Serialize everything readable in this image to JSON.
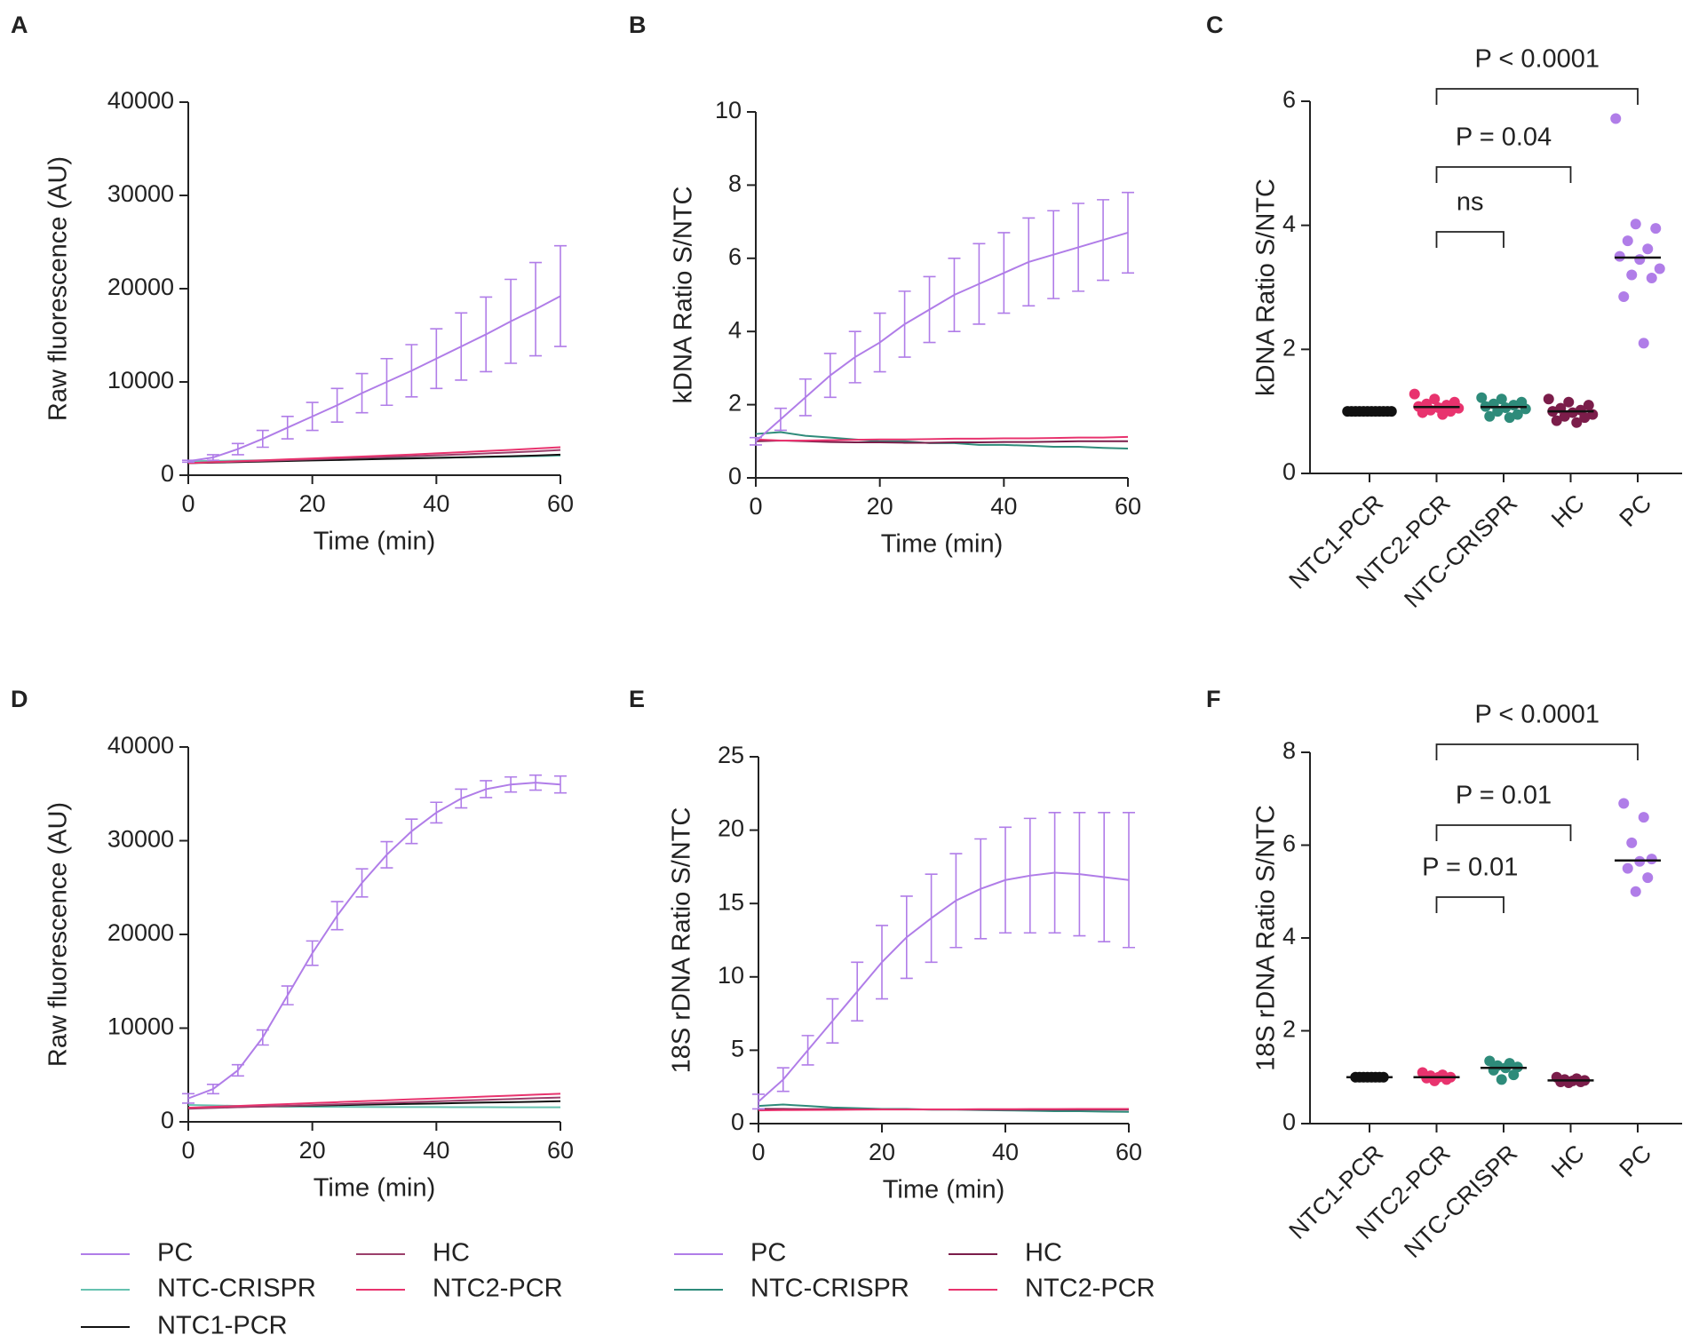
{
  "chart_data": [
    {
      "type": "line",
      "panel": "A",
      "xlabel": "Time (min)",
      "ylabel": "Raw fluorescence (AU)",
      "x": [
        0,
        4,
        8,
        12,
        16,
        20,
        24,
        28,
        32,
        36,
        40,
        44,
        48,
        52,
        56,
        60
      ],
      "xlim": [
        0,
        60
      ],
      "xticks": [
        0,
        20,
        40,
        60
      ],
      "ylim": [
        0,
        40000
      ],
      "yticks": [
        0,
        10000,
        20000,
        30000,
        40000
      ],
      "legend": false,
      "series": [
        {
          "name": "PC",
          "color": "#b07de8",
          "values": [
            1500,
            1900,
            2800,
            3900,
            5100,
            6300,
            7500,
            8800,
            10000,
            11200,
            12500,
            13800,
            15100,
            16500,
            17800,
            19200
          ],
          "errors": [
            100,
            300,
            600,
            900,
            1200,
            1500,
            1800,
            2100,
            2500,
            2800,
            3200,
            3600,
            4000,
            4500,
            5000,
            5400
          ]
        },
        {
          "name": "NTC-CRISPR",
          "color": "#66c2b0",
          "values": [
            1500,
            1530,
            1570,
            1600,
            1640,
            1680,
            1710,
            1750,
            1790,
            1830,
            1870,
            1910,
            1950,
            1990,
            2040,
            2100
          ]
        },
        {
          "name": "NTC1-PCR",
          "color": "#111111",
          "values": [
            1300,
            1350,
            1410,
            1460,
            1520,
            1580,
            1630,
            1690,
            1750,
            1800,
            1860,
            1920,
            1980,
            2040,
            2110,
            2200
          ]
        },
        {
          "name": "HC",
          "color": "#9b3f6b",
          "values": [
            1300,
            1380,
            1460,
            1540,
            1620,
            1700,
            1790,
            1870,
            1950,
            2040,
            2130,
            2230,
            2330,
            2440,
            2560,
            2700
          ]
        },
        {
          "name": "NTC2-PCR",
          "color": "#e8336e",
          "values": [
            1300,
            1400,
            1500,
            1600,
            1700,
            1800,
            1900,
            2000,
            2110,
            2220,
            2340,
            2460,
            2590,
            2720,
            2860,
            3000
          ]
        }
      ]
    },
    {
      "type": "line",
      "panel": "B",
      "xlabel": "Time (min)",
      "ylabel": "kDNA Ratio S/NTC",
      "x": [
        0,
        4,
        8,
        12,
        16,
        20,
        24,
        28,
        32,
        36,
        40,
        44,
        48,
        52,
        56,
        60
      ],
      "xlim": [
        0,
        60
      ],
      "xticks": [
        0,
        20,
        40,
        60
      ],
      "ylim": [
        0,
        10
      ],
      "yticks": [
        0,
        2,
        4,
        6,
        8,
        10
      ],
      "legend": false,
      "series": [
        {
          "name": "PC",
          "color": "#b07de8",
          "values": [
            1.0,
            1.6,
            2.2,
            2.8,
            3.3,
            3.7,
            4.2,
            4.6,
            5.0,
            5.3,
            5.6,
            5.9,
            6.1,
            6.3,
            6.5,
            6.7
          ],
          "errors": [
            0.1,
            0.3,
            0.5,
            0.6,
            0.7,
            0.8,
            0.9,
            0.9,
            1.0,
            1.1,
            1.1,
            1.2,
            1.2,
            1.2,
            1.1,
            1.1
          ]
        },
        {
          "name": "NTC-CRISPR",
          "color": "#2e8b7a",
          "values": [
            1.2,
            1.25,
            1.15,
            1.1,
            1.05,
            1.0,
            1.0,
            0.95,
            0.95,
            0.9,
            0.9,
            0.88,
            0.85,
            0.85,
            0.82,
            0.8
          ]
        },
        {
          "name": "HC",
          "color": "#7b1d4a",
          "values": [
            1.0,
            1.02,
            1.0,
            0.98,
            0.97,
            0.97,
            0.96,
            0.96,
            0.97,
            0.97,
            0.98,
            0.98,
            0.99,
            1.0,
            1.0,
            1.0
          ]
        },
        {
          "name": "NTC2-PCR",
          "color": "#e8336e",
          "values": [
            1.05,
            1.02,
            1.02,
            1.03,
            1.04,
            1.05,
            1.05,
            1.06,
            1.07,
            1.07,
            1.08,
            1.08,
            1.09,
            1.1,
            1.1,
            1.12
          ]
        }
      ]
    },
    {
      "type": "dot",
      "panel": "C",
      "ylabel": "kDNA Ratio S/NTC",
      "categories": [
        "NTC1-PCR",
        "NTC2-PCR",
        "NTC-CRISPR",
        "HC",
        "PC"
      ],
      "colors": [
        "#111111",
        "#e8336e",
        "#2e8b7a",
        "#7b1d4a",
        "#b07de8"
      ],
      "ylim": [
        0,
        6
      ],
      "yticks": [
        0,
        2,
        4,
        6
      ],
      "values": [
        [
          1,
          1,
          1,
          1,
          1,
          1,
          1,
          1,
          1,
          1,
          1,
          1
        ],
        [
          1.28,
          1.2,
          1.15,
          1.12,
          1.1,
          1.08,
          1.06,
          1.05,
          1.02,
          1.0,
          0.98,
          0.95
        ],
        [
          1.22,
          1.2,
          1.15,
          1.12,
          1.1,
          1.08,
          1.06,
          1.04,
          1.0,
          0.95,
          0.92,
          0.9
        ],
        [
          1.2,
          1.15,
          1.1,
          1.05,
          1.02,
          1.0,
          0.98,
          0.95,
          0.92,
          0.9,
          0.85,
          0.82
        ],
        [
          5.72,
          4.02,
          3.95,
          3.75,
          3.62,
          3.5,
          3.45,
          3.3,
          3.2,
          3.15,
          2.85,
          2.1
        ]
      ],
      "medians": [
        1.0,
        1.07,
        1.07,
        1.0,
        3.48
      ],
      "annotations": [
        {
          "from": "NTC2-PCR",
          "to": "NTC-CRISPR",
          "label": "ns"
        },
        {
          "from": "NTC2-PCR",
          "to": "HC",
          "label": "P = 0.04"
        },
        {
          "from": "NTC2-PCR",
          "to": "PC",
          "label": "P < 0.0001"
        }
      ]
    },
    {
      "type": "line",
      "panel": "D",
      "xlabel": "Time (min)",
      "ylabel": "Raw fluorescence (AU)",
      "x": [
        0,
        4,
        8,
        12,
        16,
        20,
        24,
        28,
        32,
        36,
        40,
        44,
        48,
        52,
        56,
        60
      ],
      "xlim": [
        0,
        60
      ],
      "xticks": [
        0,
        20,
        40,
        60
      ],
      "ylim": [
        0,
        40000
      ],
      "yticks": [
        0,
        10000,
        20000,
        30000,
        40000
      ],
      "legend": true,
      "series": [
        {
          "name": "PC",
          "color": "#b07de8",
          "values": [
            2500,
            3500,
            5500,
            9000,
            13500,
            18000,
            22000,
            25500,
            28500,
            31000,
            33000,
            34500,
            35500,
            36000,
            36200,
            36000
          ],
          "errors": [
            500,
            500,
            600,
            800,
            1000,
            1300,
            1500,
            1500,
            1400,
            1300,
            1100,
            1000,
            900,
            800,
            800,
            900
          ]
        },
        {
          "name": "NTC-CRISPR",
          "color": "#66c2b0",
          "values": [
            1800,
            1750,
            1700,
            1650,
            1620,
            1600,
            1600,
            1590,
            1580,
            1580,
            1570,
            1560,
            1560,
            1550,
            1550,
            1550
          ]
        },
        {
          "name": "NTC1-PCR",
          "color": "#111111",
          "values": [
            1500,
            1540,
            1590,
            1640,
            1680,
            1730,
            1780,
            1820,
            1870,
            1920,
            1960,
            2010,
            2060,
            2100,
            2150,
            2200
          ]
        },
        {
          "name": "HC",
          "color": "#9b3f6b",
          "values": [
            1400,
            1480,
            1560,
            1630,
            1710,
            1790,
            1870,
            1950,
            2030,
            2110,
            2190,
            2270,
            2350,
            2430,
            2520,
            2600
          ]
        },
        {
          "name": "NTC2-PCR",
          "color": "#e8336e",
          "values": [
            1500,
            1600,
            1700,
            1800,
            1900,
            2000,
            2100,
            2200,
            2300,
            2400,
            2500,
            2600,
            2700,
            2800,
            2900,
            3000
          ]
        }
      ]
    },
    {
      "type": "line",
      "panel": "E",
      "xlabel": "Time (min)",
      "ylabel": "18S rDNA Ratio S/NTC",
      "x": [
        0,
        4,
        8,
        12,
        16,
        20,
        24,
        28,
        32,
        36,
        40,
        44,
        48,
        52,
        56,
        60
      ],
      "xlim": [
        0,
        60
      ],
      "xticks": [
        0,
        20,
        40,
        60
      ],
      "ylim": [
        0,
        25
      ],
      "yticks": [
        0,
        5,
        10,
        15,
        20,
        25
      ],
      "legend": true,
      "series": [
        {
          "name": "PC",
          "color": "#b07de8",
          "values": [
            1.5,
            3.0,
            5.0,
            7.0,
            9.0,
            11.0,
            12.7,
            14.0,
            15.2,
            16.0,
            16.6,
            16.9,
            17.1,
            17.0,
            16.8,
            16.6
          ],
          "errors": [
            0.5,
            0.8,
            1.0,
            1.5,
            2.0,
            2.5,
            2.8,
            3.0,
            3.2,
            3.4,
            3.6,
            3.9,
            4.1,
            4.2,
            4.4,
            4.6
          ]
        },
        {
          "name": "NTC-CRISPR",
          "color": "#2e8b7a",
          "values": [
            1.2,
            1.3,
            1.2,
            1.1,
            1.05,
            1.0,
            1.0,
            0.95,
            0.95,
            0.92,
            0.9,
            0.88,
            0.85,
            0.85,
            0.82,
            0.8
          ]
        },
        {
          "name": "HC",
          "color": "#7b1d4a",
          "values": [
            1.0,
            1.0,
            0.98,
            0.98,
            0.97,
            0.97,
            0.97,
            0.96,
            0.96,
            0.96,
            0.95,
            0.95,
            0.95,
            0.95,
            0.95,
            0.95
          ]
        },
        {
          "name": "NTC2-PCR",
          "color": "#e8336e",
          "values": [
            0.9,
            0.92,
            0.93,
            0.94,
            0.95,
            0.96,
            0.96,
            0.97,
            0.97,
            0.98,
            0.98,
            0.99,
            0.99,
            1.0,
            1.0,
            1.0
          ]
        }
      ]
    },
    {
      "type": "dot",
      "panel": "F",
      "ylabel": "18S rDNA Ratio S/NTC",
      "categories": [
        "NTC1-PCR",
        "NTC2-PCR",
        "NTC-CRISPR",
        "HC",
        "PC"
      ],
      "colors": [
        "#111111",
        "#e8336e",
        "#2e8b7a",
        "#7b1d4a",
        "#b07de8"
      ],
      "ylim": [
        0,
        8
      ],
      "yticks": [
        0,
        2,
        4,
        6,
        8
      ],
      "values": [
        [
          1,
          1,
          1,
          1,
          1,
          1,
          1,
          1
        ],
        [
          1.1,
          1.05,
          1.03,
          1.0,
          1.0,
          0.98,
          0.95,
          0.92
        ],
        [
          1.35,
          1.3,
          1.25,
          1.22,
          1.2,
          1.15,
          1.05,
          0.95
        ],
        [
          1.0,
          0.97,
          0.95,
          0.93,
          0.92,
          0.9,
          0.9,
          0.88
        ],
        [
          6.9,
          6.6,
          6.05,
          5.7,
          5.65,
          5.5,
          5.3,
          5.0
        ]
      ],
      "medians": [
        1.0,
        1.0,
        1.2,
        0.93,
        5.67
      ],
      "annotations": [
        {
          "from": "NTC2-PCR",
          "to": "NTC-CRISPR",
          "label": "P = 0.01"
        },
        {
          "from": "NTC2-PCR",
          "to": "HC",
          "label": "P = 0.01"
        },
        {
          "from": "NTC2-PCR",
          "to": "PC",
          "label": "P < 0.0001"
        }
      ]
    }
  ]
}
